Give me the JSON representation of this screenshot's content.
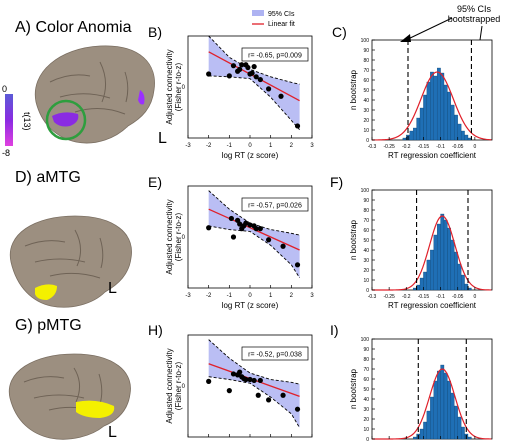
{
  "rows": [
    {
      "brain_label": "A) Color Anomia",
      "scatter_label": "B)",
      "hist_label": "C)",
      "r_text": "r= -0.65, p=0.009",
      "highlight": "purple"
    },
    {
      "brain_label": "D) aMTG",
      "scatter_label": "E)",
      "hist_label": "F)",
      "r_text": "r= -0.57, p=0.026",
      "highlight": "yellow"
    },
    {
      "brain_label": "G) pMTG",
      "scatter_label": "H)",
      "hist_label": "I)",
      "r_text": "r= -0.52, p=0.038",
      "highlight": "yellow"
    }
  ],
  "hemisphere_label": "L",
  "colorbar": {
    "label": "t(13)",
    "max": "0",
    "min": "-8"
  },
  "top_annotation": {
    "line1": "95% CIs",
    "line2": "bootstrapped"
  },
  "legend": {
    "ci": "95% CIs",
    "fit": "Linear fit"
  },
  "colors": {
    "ci_fill": "#aeb3f2",
    "fit_line": "#e0202a",
    "bar": "#1f6fb5",
    "brain": "#9c8f80",
    "purple": "#8a2be2",
    "yellow": "#f4f000",
    "circle": "#2e9e3e"
  },
  "chart_data": [
    {
      "type": "scatter",
      "id": "B",
      "xlabel": "log RT (z score)",
      "ylabel": "Adjusted connectivity\n(Fisher r-to-z)",
      "xlim": [
        -3,
        3
      ],
      "ylim": [
        -0.55,
        0.55
      ],
      "xticks": [
        "-3",
        "-2",
        "-1",
        "0",
        "1",
        "2",
        "3"
      ],
      "yticks": [
        "0"
      ],
      "points": [
        [
          -2.0,
          0.14
        ],
        [
          -1.0,
          0.12
        ],
        [
          -0.8,
          0.23
        ],
        [
          -0.6,
          0.17
        ],
        [
          -0.5,
          0.19
        ],
        [
          -0.4,
          0.24
        ],
        [
          -0.2,
          0.24
        ],
        [
          -0.1,
          0.21
        ],
        [
          0.0,
          0.14
        ],
        [
          0.1,
          0.15
        ],
        [
          0.2,
          0.22
        ],
        [
          0.3,
          0.11
        ],
        [
          0.5,
          0.08
        ],
        [
          0.9,
          -0.02
        ],
        [
          1.5,
          -0.1
        ],
        [
          2.3,
          -0.42
        ]
      ],
      "fit": {
        "slope": -0.12,
        "intercept": 0.14
      },
      "ci_upper": [
        [
          -2,
          0.55
        ],
        [
          -1,
          0.32
        ],
        [
          0,
          0.19
        ],
        [
          1,
          0.11
        ],
        [
          2,
          0.05
        ],
        [
          2.4,
          0.03
        ]
      ],
      "ci_lower": [
        [
          -2,
          0.12
        ],
        [
          -1,
          0.11
        ],
        [
          0,
          0.09
        ],
        [
          1,
          -0.11
        ],
        [
          2,
          -0.36
        ],
        [
          2.4,
          -0.46
        ]
      ]
    },
    {
      "type": "scatter",
      "id": "E",
      "xlabel": "log RT (z score)",
      "ylabel": "Adjusted connectivity\n(Fisher r-to-z)",
      "xlim": [
        -3,
        3
      ],
      "ylim": [
        -0.55,
        0.55
      ],
      "xticks": [
        "-3",
        "-2",
        "-1",
        "0",
        "1",
        "2",
        "3"
      ],
      "yticks": [
        "0"
      ],
      "points": [
        [
          -2.0,
          0.1
        ],
        [
          -0.9,
          0.2
        ],
        [
          -0.8,
          0.0
        ],
        [
          -0.6,
          0.18
        ],
        [
          -0.5,
          0.14
        ],
        [
          -0.4,
          0.09
        ],
        [
          -0.3,
          0.12
        ],
        [
          -0.2,
          0.15
        ],
        [
          0.0,
          0.13
        ],
        [
          0.2,
          0.12
        ],
        [
          0.3,
          0.09
        ],
        [
          0.5,
          0.09
        ],
        [
          0.9,
          -0.03
        ],
        [
          1.6,
          -0.1
        ],
        [
          2.3,
          -0.3
        ]
      ],
      "fit": {
        "slope": -0.1,
        "intercept": 0.1
      },
      "ci_upper": [
        [
          -2,
          0.5
        ],
        [
          -1,
          0.3
        ],
        [
          0,
          0.15
        ],
        [
          1,
          0.08
        ],
        [
          2,
          0.04
        ],
        [
          2.4,
          0.02
        ]
      ],
      "ci_lower": [
        [
          -2,
          0.12
        ],
        [
          -1,
          0.08
        ],
        [
          0,
          0.06
        ],
        [
          1,
          -0.09
        ],
        [
          2,
          -0.3
        ],
        [
          2.4,
          -0.44
        ]
      ]
    },
    {
      "type": "scatter",
      "id": "H",
      "xlabel": "log RT (z score)",
      "ylabel": "Adjusted connectivity\n(Fisher r-to-z)",
      "xlim": [
        -3,
        3
      ],
      "ylim": [
        -0.55,
        0.55
      ],
      "xticks": [
        "-3",
        "-2",
        "-1",
        "0",
        "1",
        "2",
        "3"
      ],
      "yticks": [
        "0"
      ],
      "points": [
        [
          -2.0,
          0.05
        ],
        [
          -1.0,
          -0.05
        ],
        [
          -0.8,
          0.13
        ],
        [
          -0.6,
          0.12
        ],
        [
          -0.5,
          0.15
        ],
        [
          -0.4,
          0.1
        ],
        [
          -0.3,
          0.08
        ],
        [
          -0.2,
          0.07
        ],
        [
          0.0,
          0.07
        ],
        [
          0.2,
          0.06
        ],
        [
          0.4,
          -0.1
        ],
        [
          0.5,
          0.06
        ],
        [
          0.9,
          -0.15
        ],
        [
          1.6,
          -0.1
        ],
        [
          2.3,
          -0.25
        ]
      ],
      "fit": {
        "slope": -0.08,
        "intercept": 0.08
      },
      "ci_upper": [
        [
          -2,
          0.5
        ],
        [
          -1,
          0.3
        ],
        [
          0,
          0.14
        ],
        [
          1,
          0.07
        ],
        [
          2,
          0.04
        ],
        [
          2.4,
          0.02
        ]
      ],
      "ci_lower": [
        [
          -2,
          0.1
        ],
        [
          -1,
          0.07
        ],
        [
          0,
          0.03
        ],
        [
          1,
          -0.12
        ],
        [
          2,
          -0.3
        ],
        [
          2.4,
          -0.45
        ]
      ]
    },
    {
      "type": "bar",
      "id": "C",
      "xlabel": "RT regression coefficient",
      "ylabel": "n bootstrap",
      "xlim": [
        -0.3,
        0.05
      ],
      "ylim": [
        0,
        100
      ],
      "xticks": [
        "-0.3",
        "-0.25",
        "-0.2",
        "-0.15",
        "-0.1",
        "-0.05",
        "0"
      ],
      "yticks": [
        "0",
        "10",
        "20",
        "30",
        "40",
        "50",
        "60",
        "70",
        "80",
        "90",
        "100"
      ],
      "bin_centers": [
        -0.205,
        -0.195,
        -0.185,
        -0.175,
        -0.165,
        -0.155,
        -0.145,
        -0.135,
        -0.125,
        -0.115,
        -0.105,
        -0.095,
        -0.085,
        -0.075,
        -0.065,
        -0.055,
        -0.045,
        -0.035,
        -0.025,
        -0.015
      ],
      "values": [
        2,
        5,
        9,
        12,
        22,
        32,
        45,
        58,
        68,
        64,
        72,
        67,
        55,
        48,
        35,
        25,
        16,
        9,
        5,
        2
      ],
      "ci_lines": [
        -0.195,
        -0.01
      ],
      "curve_mean": -0.11,
      "curve_sd": 0.047,
      "curve_peak": 68
    },
    {
      "type": "bar",
      "id": "F",
      "xlabel": "RT regression coefficient",
      "ylabel": "n bootstrap",
      "xlim": [
        -0.3,
        0.05
      ],
      "ylim": [
        0,
        100
      ],
      "xticks": [
        "-0.3",
        "-0.25",
        "-0.2",
        "-0.15",
        "-0.1",
        "-0.05",
        "0"
      ],
      "yticks": [
        "0",
        "10",
        "20",
        "30",
        "40",
        "50",
        "60",
        "70",
        "80",
        "90",
        "100"
      ],
      "bin_centers": [
        -0.175,
        -0.165,
        -0.155,
        -0.145,
        -0.135,
        -0.125,
        -0.115,
        -0.105,
        -0.095,
        -0.085,
        -0.075,
        -0.065,
        -0.055,
        -0.045,
        -0.035,
        -0.025,
        -0.015
      ],
      "values": [
        2,
        5,
        12,
        18,
        30,
        40,
        55,
        66,
        76,
        70,
        62,
        50,
        38,
        26,
        15,
        6,
        2
      ],
      "ci_lines": [
        -0.17,
        -0.02
      ],
      "curve_mean": -0.095,
      "curve_sd": 0.037,
      "curve_peak": 74
    },
    {
      "type": "bar",
      "id": "I",
      "xlabel": "RT regression coefficient",
      "ylabel": "n bootstrap",
      "xlim": [
        -0.3,
        0.05
      ],
      "ylim": [
        0,
        100
      ],
      "xticks": [
        "-0.3",
        "-0.25",
        "-0.2",
        "-0.15",
        "-0.1",
        "-0.05",
        "0"
      ],
      "yticks": [
        "0",
        "10",
        "20",
        "30",
        "40",
        "50",
        "60",
        "70",
        "80",
        "90",
        "100"
      ],
      "bin_centers": [
        -0.175,
        -0.165,
        -0.155,
        -0.145,
        -0.135,
        -0.125,
        -0.115,
        -0.105,
        -0.095,
        -0.085,
        -0.075,
        -0.065,
        -0.055,
        -0.045,
        -0.035,
        -0.025,
        -0.015
      ],
      "values": [
        2,
        5,
        10,
        17,
        28,
        42,
        58,
        68,
        74,
        66,
        58,
        46,
        33,
        22,
        12,
        5,
        2
      ],
      "ci_lines": [
        -0.165,
        -0.025
      ],
      "curve_mean": -0.095,
      "curve_sd": 0.037,
      "curve_peak": 70
    }
  ]
}
